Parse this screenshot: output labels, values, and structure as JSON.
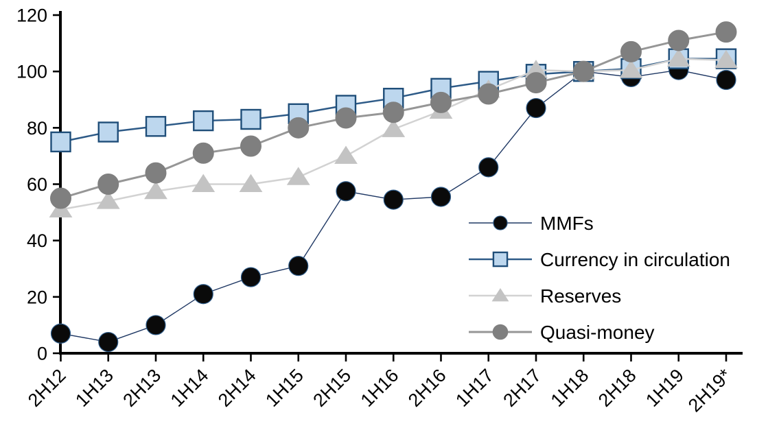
{
  "chart_data": {
    "type": "line",
    "title": "",
    "xlabel": "",
    "ylabel": "",
    "categories": [
      "2H12",
      "1H13",
      "2H13",
      "1H14",
      "2H14",
      "1H15",
      "2H15",
      "1H16",
      "2H16",
      "1H17",
      "2H17",
      "1H18",
      "2H18",
      "1H19",
      "2H19*"
    ],
    "series": [
      {
        "name": "MMFs",
        "marker": "circle",
        "line_color": "#1F3864",
        "marker_fill": "#0A0A0A",
        "marker_stroke": "#2E5C8A",
        "values": [
          7,
          4,
          10,
          21,
          27,
          31,
          57.5,
          54.5,
          55.5,
          66,
          87,
          100,
          98,
          100.5,
          97
        ]
      },
      {
        "name": "Currency in circulation",
        "marker": "square",
        "line_color": "#2D5A87",
        "marker_fill": "#BDD7EE",
        "marker_stroke": "#1F4E79",
        "values": [
          75,
          78.5,
          80.5,
          82.5,
          83,
          85,
          88,
          90.5,
          94,
          96.5,
          99,
          100,
          101,
          104.5,
          104.5
        ]
      },
      {
        "name": "Reserves",
        "marker": "triangle",
        "line_color": "#D2D2D2",
        "marker_fill": "#C3C3C3",
        "marker_stroke": "#C3C3C3",
        "values": [
          51,
          54,
          57.5,
          60,
          60,
          62.5,
          70,
          79.5,
          86,
          93.5,
          100.5,
          100,
          100.5,
          104.5,
          104
        ]
      },
      {
        "name": "Quasi-money",
        "marker": "circle",
        "line_color": "#969696",
        "marker_fill": "#7F7F7F",
        "marker_stroke": "#7F7F7F",
        "values": [
          55,
          60,
          64,
          71,
          73.5,
          80,
          83.5,
          85.5,
          89,
          92,
          96,
          100,
          107,
          111,
          114
        ]
      }
    ],
    "ylim": [
      0,
      120
    ],
    "yticks": [
      0,
      20,
      40,
      60,
      80,
      100,
      120
    ],
    "grid": false,
    "legend_position": "inside-right",
    "axis_color": "#000000"
  }
}
